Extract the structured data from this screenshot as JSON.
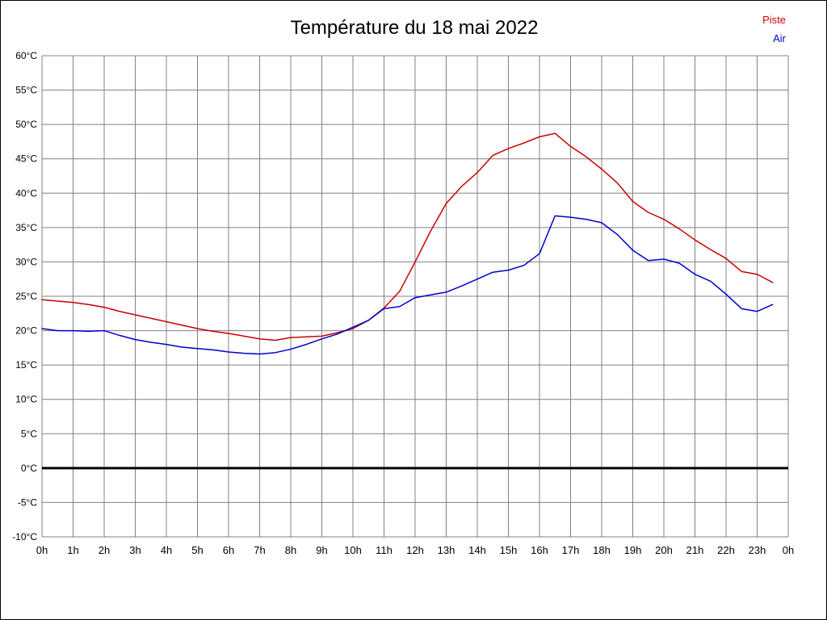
{
  "chart_data": {
    "type": "line",
    "title": "Température du 18 mai 2022",
    "xlabel": "",
    "ylabel": "",
    "xlim": [
      0,
      24
    ],
    "ylim": [
      -10,
      60
    ],
    "grid": true,
    "grid_color": "#808080",
    "zero_line_color": "#000000",
    "background_color": "#ffffff",
    "legend_position": "top-right",
    "x_ticks": [
      {
        "value": 0,
        "label": "0h"
      },
      {
        "value": 1,
        "label": "1h"
      },
      {
        "value": 2,
        "label": "2h"
      },
      {
        "value": 3,
        "label": "3h"
      },
      {
        "value": 4,
        "label": "4h"
      },
      {
        "value": 5,
        "label": "5h"
      },
      {
        "value": 6,
        "label": "6h"
      },
      {
        "value": 7,
        "label": "7h"
      },
      {
        "value": 8,
        "label": "8h"
      },
      {
        "value": 9,
        "label": "9h"
      },
      {
        "value": 10,
        "label": "10h"
      },
      {
        "value": 11,
        "label": "11h"
      },
      {
        "value": 12,
        "label": "12h"
      },
      {
        "value": 13,
        "label": "13h"
      },
      {
        "value": 14,
        "label": "14h"
      },
      {
        "value": 15,
        "label": "15h"
      },
      {
        "value": 16,
        "label": "16h"
      },
      {
        "value": 17,
        "label": "17h"
      },
      {
        "value": 18,
        "label": "18h"
      },
      {
        "value": 19,
        "label": "19h"
      },
      {
        "value": 20,
        "label": "20h"
      },
      {
        "value": 21,
        "label": "21h"
      },
      {
        "value": 22,
        "label": "22h"
      },
      {
        "value": 23,
        "label": "23h"
      },
      {
        "value": 24,
        "label": "0h"
      }
    ],
    "y_ticks": [
      {
        "value": 60,
        "label": "60°C"
      },
      {
        "value": 55,
        "label": "55°C"
      },
      {
        "value": 50,
        "label": "50°C"
      },
      {
        "value": 45,
        "label": "45°C"
      },
      {
        "value": 40,
        "label": "40°C"
      },
      {
        "value": 35,
        "label": "35°C"
      },
      {
        "value": 30,
        "label": "30°C"
      },
      {
        "value": 25,
        "label": "25°C"
      },
      {
        "value": 20,
        "label": "20°C"
      },
      {
        "value": 15,
        "label": "15°C"
      },
      {
        "value": 10,
        "label": "10°C"
      },
      {
        "value": 5,
        "label": "5°C"
      },
      {
        "value": 0,
        "label": "0°C"
      },
      {
        "value": -5,
        "label": "-5°C"
      },
      {
        "value": -10,
        "label": "-10°C"
      }
    ],
    "x": [
      0,
      0.5,
      1,
      1.5,
      2,
      2.5,
      3,
      3.5,
      4,
      4.5,
      5,
      5.5,
      6,
      6.5,
      7,
      7.5,
      8,
      8.5,
      9,
      9.5,
      10,
      10.5,
      11,
      11.5,
      12,
      12.5,
      13,
      13.5,
      14,
      14.5,
      15,
      15.5,
      16,
      16.5,
      17,
      17.5,
      18,
      18.5,
      19,
      19.5,
      20,
      20.5,
      21,
      21.5,
      22,
      22.5,
      23,
      23.5
    ],
    "series": [
      {
        "name": "Piste",
        "color": "#cc0000",
        "values": [
          24.5,
          24.3,
          24.1,
          23.8,
          23.4,
          22.8,
          22.3,
          21.8,
          21.3,
          20.8,
          20.3,
          19.9,
          19.6,
          19.2,
          18.8,
          18.6,
          19.0,
          19.1,
          19.2,
          19.7,
          20.3,
          21.5,
          23.3,
          25.7,
          30.0,
          34.5,
          38.5,
          41.0,
          43.0,
          45.5,
          46.5,
          47.3,
          48.2,
          48.7,
          46.8,
          45.3,
          43.5,
          41.5,
          38.8,
          37.2,
          36.2,
          34.8,
          33.2,
          31.8,
          30.5,
          28.6,
          28.2,
          27.0
        ]
      },
      {
        "name": "Air",
        "color": "#0000cc",
        "values": [
          20.3,
          20.0,
          20.0,
          19.9,
          20.0,
          19.3,
          18.7,
          18.3,
          18.0,
          17.6,
          17.4,
          17.2,
          16.9,
          16.7,
          16.6,
          16.8,
          17.3,
          18.0,
          18.8,
          19.5,
          20.5,
          21.5,
          23.2,
          23.5,
          24.8,
          25.2,
          25.6,
          26.5,
          27.5,
          28.5,
          28.8,
          29.5,
          31.2,
          36.7,
          36.5,
          36.2,
          35.7,
          34.0,
          31.7,
          30.2,
          30.4,
          29.8,
          28.2,
          27.2,
          25.3,
          23.2,
          22.8,
          23.8
        ]
      }
    ]
  }
}
